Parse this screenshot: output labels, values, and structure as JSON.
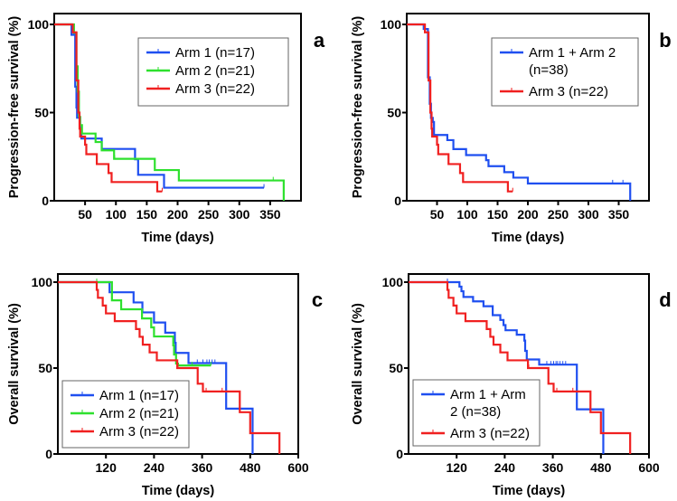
{
  "chart_data": [
    {
      "type": "line",
      "panel_label": "a",
      "ylabel": "Progression-free survival (%)",
      "xlabel": "Time (days)",
      "xlim": [
        0,
        400
      ],
      "ylim": [
        0,
        100
      ],
      "xticks": [
        "50",
        "100",
        "150",
        "200",
        "250",
        "300",
        "350"
      ],
      "xtick_values": [
        50,
        100,
        150,
        200,
        250,
        300,
        350
      ],
      "yticks": [
        "0",
        "50",
        "100"
      ],
      "ytick_values": [
        0,
        50,
        100
      ],
      "legend_position": "top-right",
      "series": [
        {
          "name": "Arm 1 (n=17)",
          "legend_lines": [
            "Arm 1 (n=17)"
          ],
          "color": "#1f4ff0",
          "steps": [
            [
              28,
              94.1
            ],
            [
              34,
              64.7
            ],
            [
              36,
              52.9
            ],
            [
              37,
              47.1
            ],
            [
              42,
              41.2
            ],
            [
              44,
              35.3
            ],
            [
              77,
              29.4
            ],
            [
              131,
              23.5
            ],
            [
              136,
              14.7
            ],
            [
              178,
              7.4
            ]
          ],
          "end": 340,
          "censored": [
            340
          ]
        },
        {
          "name": "Arm 2 (n=21)",
          "legend_lines": [
            "Arm 2 (n=21)"
          ],
          "color": "#2ee02e",
          "steps": [
            [
              32,
              95.2
            ],
            [
              36,
              76.2
            ],
            [
              38,
              61.9
            ],
            [
              40,
              47.6
            ],
            [
              42,
              42.9
            ],
            [
              45,
              38.1
            ],
            [
              67,
              33.3
            ],
            [
              77,
              28.6
            ],
            [
              97,
              23.8
            ],
            [
              163,
              17.4
            ],
            [
              202,
              11.5
            ],
            [
              372,
              0
            ]
          ],
          "end": 372,
          "censored": [
            98,
            355
          ]
        },
        {
          "name": "Arm 3 (n=22)",
          "legend_lines": [
            "Arm 3 (n=22)"
          ],
          "color": "#f02020",
          "steps": [
            [
              30,
              95.5
            ],
            [
              36,
              68.2
            ],
            [
              39,
              50
            ],
            [
              41,
              40.9
            ],
            [
              42,
              36.4
            ],
            [
              50,
              31.8
            ],
            [
              52,
              26.4
            ],
            [
              69,
              20.8
            ],
            [
              88,
              15.7
            ],
            [
              93,
              10.6
            ],
            [
              167,
              5.3
            ]
          ],
          "end": 175,
          "censored": [
            175
          ]
        }
      ]
    },
    {
      "type": "line",
      "panel_label": "b",
      "ylabel": "Progression-free survival (%)",
      "xlabel": "Time (days)",
      "xlim": [
        0,
        400
      ],
      "ylim": [
        0,
        100
      ],
      "xticks": [
        "50",
        "100",
        "150",
        "200",
        "250",
        "300",
        "350"
      ],
      "xtick_values": [
        50,
        100,
        150,
        200,
        250,
        300,
        350
      ],
      "yticks": [
        "0",
        "50",
        "100"
      ],
      "ytick_values": [
        0,
        50,
        100
      ],
      "legend_position": "top-right",
      "series": [
        {
          "name": "Arm 1 + Arm 2 (n=38)",
          "legend_lines": [
            "Arm 1 + Arm 2",
            "(n=38)"
          ],
          "color": "#1f4ff0",
          "steps": [
            [
              28,
              97.4
            ],
            [
              35,
              70
            ],
            [
              38,
              55
            ],
            [
              40,
              47
            ],
            [
              43,
              44.7
            ],
            [
              45,
              37.3
            ],
            [
              67,
              34.4
            ],
            [
              77,
              29.3
            ],
            [
              98,
              25.9
            ],
            [
              131,
              23
            ],
            [
              135,
              19.6
            ],
            [
              161,
              16.2
            ],
            [
              176,
              13.1
            ],
            [
              200,
              9.8
            ],
            [
              369,
              0
            ]
          ],
          "end": 369,
          "censored": [
            98,
            340,
            357
          ]
        },
        {
          "name": "Arm 3 (n=22)",
          "legend_lines": [
            "Arm 3 (n=22)"
          ],
          "color": "#f02020",
          "steps": [
            [
              30,
              95.5
            ],
            [
              36,
              68.2
            ],
            [
              39,
              50
            ],
            [
              41,
              40.9
            ],
            [
              42,
              36.4
            ],
            [
              50,
              31.8
            ],
            [
              52,
              26.4
            ],
            [
              69,
              20.8
            ],
            [
              88,
              15.7
            ],
            [
              93,
              10.6
            ],
            [
              167,
              5.3
            ]
          ],
          "end": 175,
          "censored": [
            175
          ]
        }
      ]
    },
    {
      "type": "line",
      "panel_label": "c",
      "ylabel": "Overall survival  (%)",
      "xlabel": "Time (days)",
      "xlim": [
        0,
        600
      ],
      "ylim": [
        0,
        100
      ],
      "xticks": [
        "120",
        "240",
        "360",
        "480",
        "600"
      ],
      "xtick_values": [
        120,
        240,
        360,
        480,
        600
      ],
      "yticks": [
        "0",
        "50",
        "100"
      ],
      "ytick_values": [
        0,
        50,
        100
      ],
      "legend_position": "bottom-left",
      "series": [
        {
          "name": "Arm 1 (n=17)",
          "legend_lines": [
            "Arm 1 (n=17)"
          ],
          "color": "#1f4ff0",
          "steps": [
            [
              129,
              94.1
            ],
            [
              189,
              88.2
            ],
            [
              211,
              82.4
            ],
            [
              240,
              76.5
            ],
            [
              268,
              70.6
            ],
            [
              292,
              64.7
            ],
            [
              294,
              58.8
            ],
            [
              326,
              52.9
            ],
            [
              420,
              26.4
            ],
            [
              486,
              0
            ]
          ],
          "end": 486,
          "censored": [
            348,
            362,
            372,
            378,
            385,
            392
          ]
        },
        {
          "name": "Arm 2 (n=21)",
          "legend_lines": [
            "Arm 2 (n=21)"
          ],
          "color": "#2ee02e",
          "steps": [
            [
              135,
              89.4
            ],
            [
              158,
              84.2
            ],
            [
              210,
              78.9
            ],
            [
              233,
              73.7
            ],
            [
              240,
              68.4
            ],
            [
              288,
              63.2
            ],
            [
              290,
              57.9
            ],
            [
              295,
              52.6
            ],
            [
              300,
              51.5
            ]
          ],
          "end": 382,
          "censored": [
            97,
            335,
            382
          ]
        },
        {
          "name": "Arm 3 (n=22)",
          "legend_lines": [
            "Arm 3 (n=22)"
          ],
          "color": "#f02020",
          "steps": [
            [
              97,
              95.5
            ],
            [
              100,
              90.9
            ],
            [
              112,
              86.4
            ],
            [
              120,
              81.8
            ],
            [
              142,
              77.3
            ],
            [
              195,
              72.7
            ],
            [
              204,
              68.2
            ],
            [
              212,
              63.6
            ],
            [
              229,
              59.1
            ],
            [
              247,
              54.5
            ],
            [
              298,
              50
            ],
            [
              349,
              40.9
            ],
            [
              362,
              36.4
            ],
            [
              454,
              24.3
            ],
            [
              480,
              12.1
            ],
            [
              553,
              0
            ]
          ],
          "end": 553,
          "censored": [
            300,
            370,
            410
          ]
        }
      ]
    },
    {
      "type": "line",
      "panel_label": "d",
      "ylabel": "Overall survival  (%)",
      "xlabel": "Time (days)",
      "xlim": [
        0,
        600
      ],
      "ylim": [
        0,
        100
      ],
      "xticks": [
        "120",
        "240",
        "360",
        "480",
        "600"
      ],
      "xtick_values": [
        120,
        240,
        360,
        480,
        600
      ],
      "yticks": [
        "0",
        "50",
        "100"
      ],
      "ytick_values": [
        0,
        50,
        100
      ],
      "legend_position": "bottom-left",
      "series": [
        {
          "name": "Arm 1 + Arm 2 (n=38)",
          "legend_lines": [
            "Arm 1 + Arm",
            "2 (n=38)"
          ],
          "color": "#1f4ff0",
          "steps": [
            [
              127,
              97.4
            ],
            [
              132,
              94.7
            ],
            [
              137,
              91.4
            ],
            [
              161,
              88.8
            ],
            [
              187,
              86
            ],
            [
              210,
              80.8
            ],
            [
              229,
              78
            ],
            [
              237,
              75
            ],
            [
              242,
              72
            ],
            [
              270,
              69.4
            ],
            [
              289,
              66
            ],
            [
              291,
              60
            ],
            [
              295,
              55
            ],
            [
              326,
              52
            ],
            [
              420,
              26
            ],
            [
              486,
              0
            ]
          ],
          "end": 486,
          "censored": [
            97,
            345,
            355,
            362,
            368,
            372,
            378,
            385,
            392
          ]
        },
        {
          "name": "Arm 3 (n=22)",
          "legend_lines": [
            "Arm 3 (n=22)"
          ],
          "color": "#f02020",
          "steps": [
            [
              97,
              95.5
            ],
            [
              100,
              90.9
            ],
            [
              112,
              86.4
            ],
            [
              120,
              81.8
            ],
            [
              142,
              77.3
            ],
            [
              195,
              72.7
            ],
            [
              204,
              68.2
            ],
            [
              212,
              63.6
            ],
            [
              229,
              59.1
            ],
            [
              247,
              54.5
            ],
            [
              298,
              50
            ],
            [
              349,
              40.9
            ],
            [
              362,
              36.4
            ],
            [
              454,
              24.3
            ],
            [
              480,
              12.1
            ],
            [
              553,
              0
            ]
          ],
          "end": 553,
          "censored": [
            300,
            370,
            410
          ]
        }
      ]
    }
  ]
}
